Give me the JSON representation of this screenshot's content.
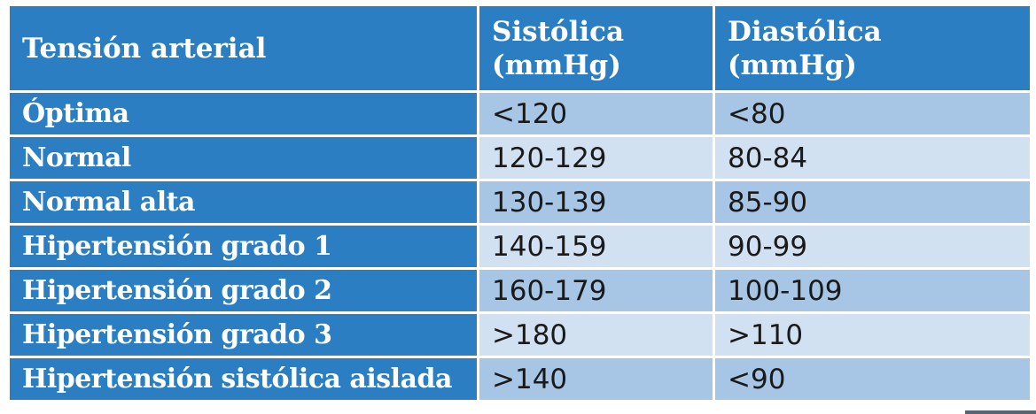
{
  "header": {
    "col1": "Tensión arterial",
    "col2_line1": "Sistólica",
    "col2_line2": "(mmHg)",
    "col3": "Diastólica (mmHg)"
  },
  "rows": [
    {
      "label": "Óptima",
      "systolic": "<120",
      "diastolic": "<80"
    },
    {
      "label": "Normal",
      "systolic": "120-129",
      "diastolic": "80-84"
    },
    {
      "label": "Normal alta",
      "systolic": "130-139",
      "diastolic": "85-90"
    },
    {
      "label": "Hipertensión grado 1",
      "systolic": "140-159",
      "diastolic": "90-99"
    },
    {
      "label": "Hipertensión grado 2",
      "systolic": "160-179",
      "diastolic": "100-109"
    },
    {
      "label": "Hipertensión grado 3",
      "systolic": ">180",
      "diastolic": ">110"
    },
    {
      "label": "Hipertensión sistólica aislada",
      "systolic": ">140",
      "diastolic": "<90"
    }
  ],
  "colors": {
    "header_bg": "#2b7ec1",
    "row_odd": "#a7c6e5",
    "row_even": "#d2e1f1"
  }
}
